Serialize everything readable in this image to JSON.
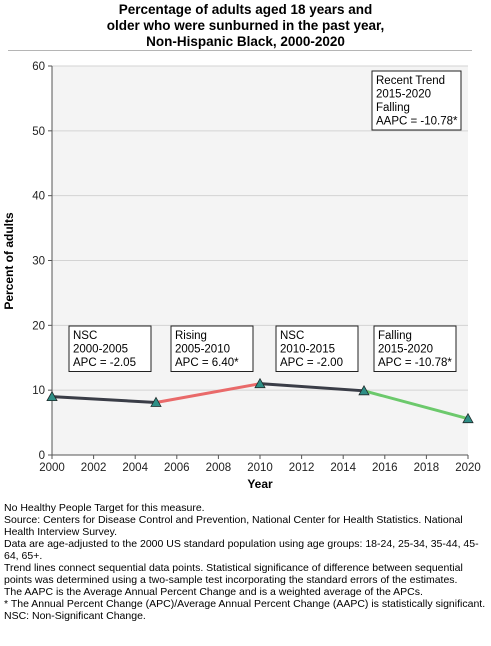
{
  "title_lines": [
    "Percentage of adults aged 18 years and",
    "older who were sunburned in the past year,",
    "Non-Hispanic Black,  2000-2020"
  ],
  "chart_data": {
    "type": "line",
    "title": "Percentage of adults aged 18 years and older who were sunburned in the past year, Non-Hispanic Black,  2000-2020",
    "xlabel": "Year",
    "ylabel": "Percent of adults",
    "xlim": [
      2000,
      2020
    ],
    "ylim": [
      0,
      60
    ],
    "xticks": [
      2000,
      2002,
      2004,
      2006,
      2008,
      2010,
      2012,
      2014,
      2016,
      2018,
      2020
    ],
    "yticks": [
      0,
      10,
      20,
      30,
      40,
      50,
      60
    ],
    "grid": true,
    "points": [
      {
        "x": 2000,
        "y": 9.0
      },
      {
        "x": 2005,
        "y": 8.1
      },
      {
        "x": 2010,
        "y": 11.0
      },
      {
        "x": 2015,
        "y": 9.9
      },
      {
        "x": 2020,
        "y": 5.6
      }
    ],
    "segments": [
      {
        "x": [
          2000,
          2005
        ],
        "trend": "NSC",
        "color": "#3a3d47"
      },
      {
        "x": [
          2005,
          2010
        ],
        "trend": "Rising",
        "color": "#e96a6a"
      },
      {
        "x": [
          2010,
          2015
        ],
        "trend": "NSC",
        "color": "#3a3d47"
      },
      {
        "x": [
          2015,
          2020
        ],
        "trend": "Falling",
        "color": "#6cc96c"
      }
    ],
    "marker_color": "#2e8f86",
    "annotations": [
      {
        "lines": [
          "NSC",
          "2000-2005",
          "APC = -2.05"
        ]
      },
      {
        "lines": [
          "Rising",
          "2005-2010",
          "APC =  6.40*"
        ]
      },
      {
        "lines": [
          "NSC",
          "2010-2015",
          "APC = -2.00"
        ]
      },
      {
        "lines": [
          "Falling",
          "2015-2020",
          "APC = -10.78*"
        ]
      }
    ],
    "trend_box": {
      "lines": [
        "Recent Trend",
        "2015-2020",
        "Falling",
        "AAPC = -10.78*"
      ]
    }
  },
  "notes": [
    "No Healthy People Target for this measure.",
    "Source: Centers for Disease Control and Prevention, National Center for Health Statistics. National Health Interview Survey.",
    "Data are age-adjusted to the 2000 US standard population using age groups: 18-24, 25-34, 35-44, 45-64, 65+.",
    "Trend lines connect sequential data points. Statistical significance of difference between sequential points was determined using a two-sample test incorporating the standard errors of the estimates.",
    "The AAPC is the Average Annual Percent Change and is a weighted average of the APCs.",
    "* The Annual Percent Change (APC)/Average Annual Percent Change (AAPC) is statistically significant.",
    "NSC: Non-Significant Change."
  ]
}
